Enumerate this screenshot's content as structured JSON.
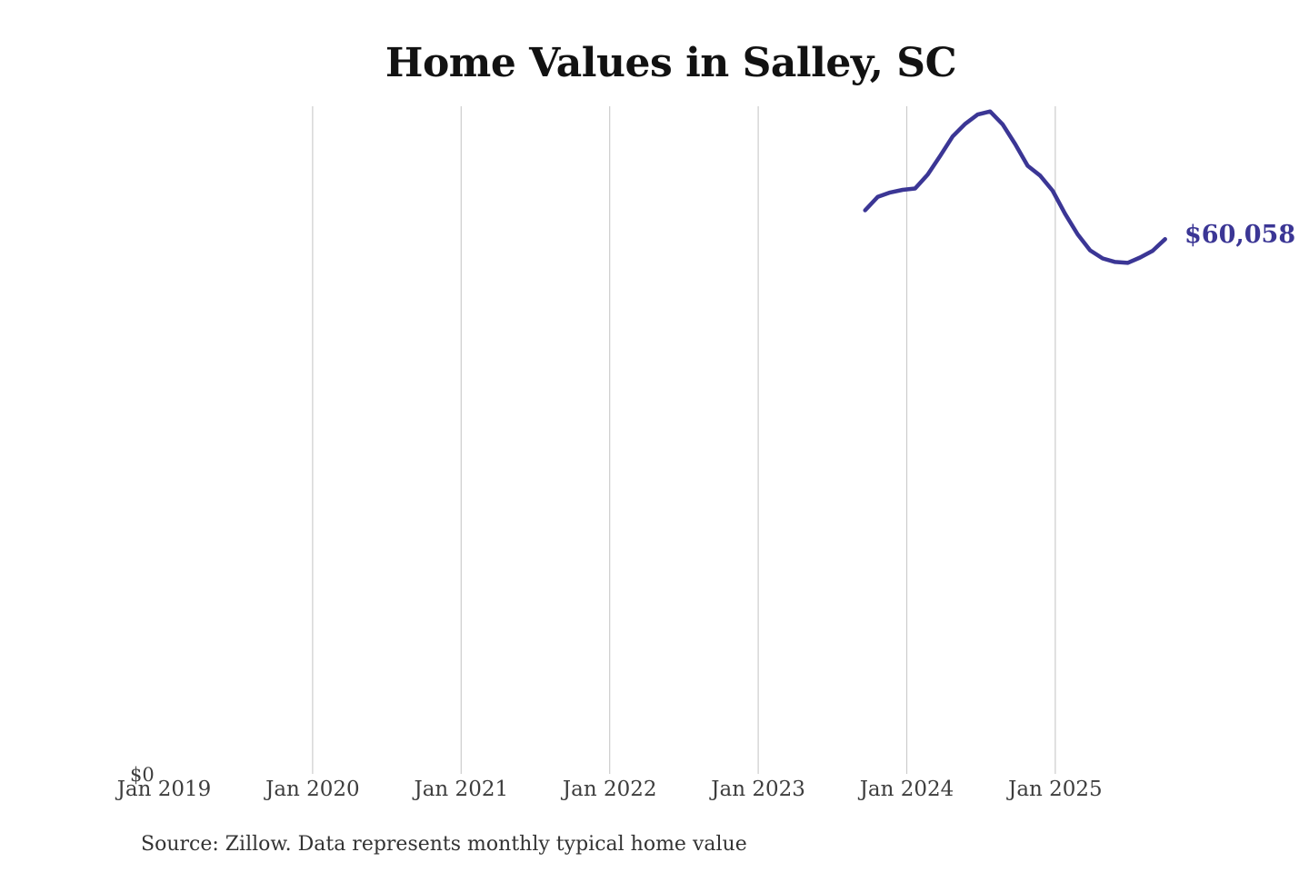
{
  "title": "Home Values in Salley, SC",
  "source_note": "Source: Zillow. Data represents monthly typical home value",
  "y_zero_label": "$0",
  "end_value_label": "$60,058",
  "colors": {
    "line": "#3b3695",
    "grid": "#cccccc",
    "axis_text": "#3d3d3d",
    "title_text": "#121212",
    "source_text": "#333333",
    "background": "#ffffff"
  },
  "chart_data": {
    "type": "line",
    "title": "Home Values in Salley, SC",
    "x_ticks": [
      "Jan 2019",
      "Jan 2020",
      "Jan 2021",
      "Jan 2022",
      "Jan 2023",
      "Jan 2024",
      "Jan 2025"
    ],
    "y_ticks": [
      "$0"
    ],
    "ylim": [
      0,
      75000
    ],
    "grid": "vertical-gridlines-only",
    "legend": "none",
    "x": [
      "Oct 2023",
      "Nov 2023",
      "Dec 2023",
      "Jan 2024",
      "Feb 2024",
      "Mar 2024",
      "Apr 2024",
      "May 2024",
      "Jun 2024",
      "Jul 2024",
      "Aug 2024",
      "Sep 2024",
      "Oct 2024",
      "Nov 2024",
      "Dec 2024",
      "Jan 2025",
      "Feb 2025",
      "Mar 2025",
      "Apr 2025",
      "May 2025",
      "Jun 2025",
      "Jul 2025",
      "Aug 2025",
      "Sep 2025",
      "Oct 2025"
    ],
    "values": [
      63300,
      64800,
      65300,
      65600,
      65750,
      67300,
      69400,
      71600,
      73000,
      74050,
      74400,
      72950,
      70750,
      68300,
      67200,
      65500,
      62900,
      60600,
      58800,
      57900,
      57500,
      57400,
      58000,
      58750,
      60058
    ],
    "end_annotation": {
      "text": "$60,058",
      "value": 60058,
      "position": "right-of-last-point"
    }
  }
}
